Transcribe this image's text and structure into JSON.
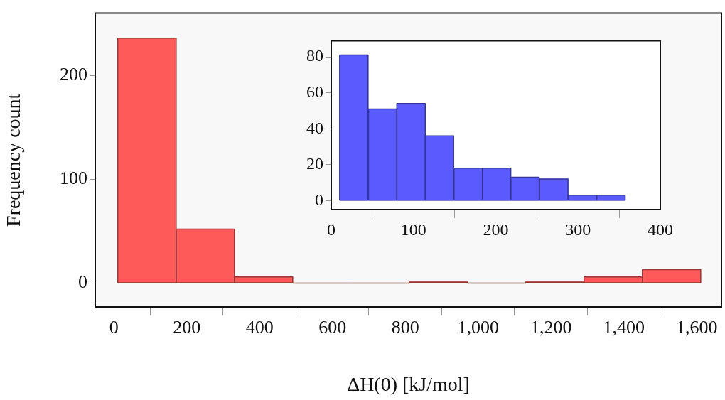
{
  "chart_data": [
    {
      "type": "histogram",
      "xlabel": "ΔH(0) [kJ/mol]",
      "ylabel": "Frequency count",
      "color": "#ff5a5a",
      "bins": [
        11,
        171,
        331,
        491,
        651,
        811,
        971,
        1131,
        1291,
        1451,
        1611
      ],
      "values": [
        236,
        52,
        6,
        0,
        0,
        1,
        0,
        1,
        6,
        13
      ],
      "xlim": [
        -51,
        1668
      ],
      "ylim": [
        -23,
        260
      ],
      "xticks": [
        0,
        200,
        400,
        600,
        800,
        {
          "value": 1000,
          "label": "1,000"
        },
        {
          "value": 1200,
          "label": "1,200"
        },
        {
          "value": 1400,
          "label": "1,400"
        },
        {
          "value": 1600,
          "label": "1,600"
        }
      ],
      "yticks": [
        0,
        100,
        200
      ]
    },
    {
      "type": "histogram",
      "color": "#5a5aff",
      "bins": [
        10,
        45,
        80,
        114,
        149,
        184,
        218,
        253,
        288,
        323,
        357
      ],
      "values": [
        81,
        51,
        54,
        36,
        18,
        18,
        13,
        12,
        3,
        3
      ],
      "xlim": [
        0,
        400
      ],
      "ylim": [
        -5,
        89
      ],
      "xticks": [
        0,
        100,
        200,
        300,
        400
      ],
      "yticks": [
        0,
        20,
        40,
        60,
        80
      ]
    }
  ]
}
